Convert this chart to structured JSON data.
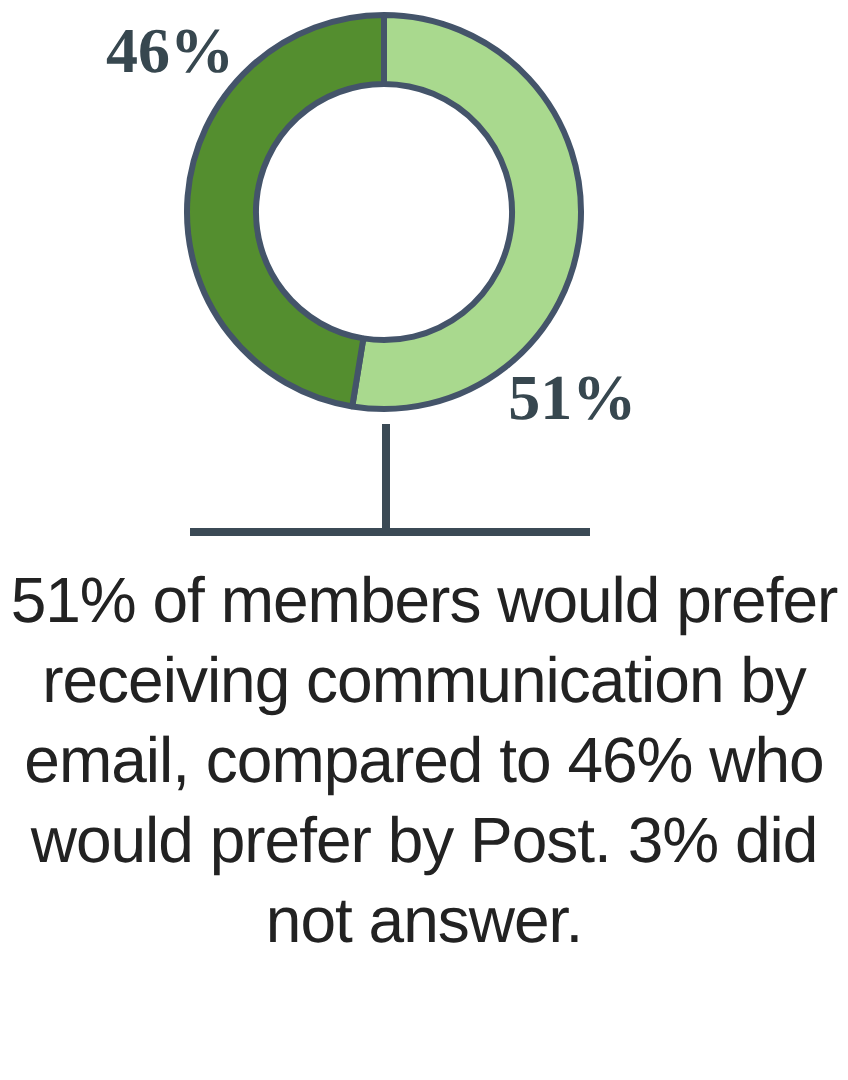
{
  "chart_data": {
    "type": "donut",
    "categories": [
      null,
      null
    ],
    "values": [
      51,
      46
    ],
    "colors": [
      "#a9d98e",
      "#548e2f"
    ],
    "value_labels": [
      "51%",
      "46%"
    ],
    "annotations": [
      "51% of members would prefer receiving communication by email, compared to 46% who would prefer by Post. 3% did not answer."
    ]
  }
}
